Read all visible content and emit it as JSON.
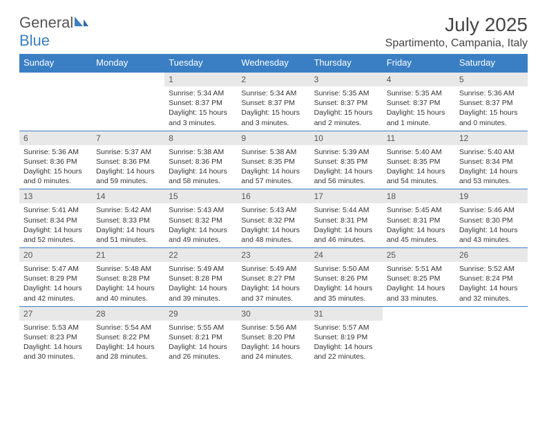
{
  "logo": {
    "text1": "General",
    "text2": "Blue"
  },
  "title": "July 2025",
  "location": "Spartimento, Campania, Italy",
  "colors": {
    "header_bg": "#3a7fc4",
    "header_fg": "#ffffff",
    "daynum_bg": "#e8e8e8",
    "text": "#333333",
    "rule": "#3a7fc4",
    "page_bg": "#ffffff",
    "logo_gray": "#555555",
    "logo_blue": "#3a7fc4"
  },
  "fonts": {
    "title_size": 28,
    "location_size": 16,
    "header_size": 13,
    "daynum_size": 12,
    "body_size": 10.5
  },
  "weekdays": [
    "Sunday",
    "Monday",
    "Tuesday",
    "Wednesday",
    "Thursday",
    "Friday",
    "Saturday"
  ],
  "first_weekday_index": 2,
  "days": [
    {
      "n": 1,
      "sunrise": "5:34 AM",
      "sunset": "8:37 PM",
      "daylight": "15 hours and 3 minutes."
    },
    {
      "n": 2,
      "sunrise": "5:34 AM",
      "sunset": "8:37 PM",
      "daylight": "15 hours and 3 minutes."
    },
    {
      "n": 3,
      "sunrise": "5:35 AM",
      "sunset": "8:37 PM",
      "daylight": "15 hours and 2 minutes."
    },
    {
      "n": 4,
      "sunrise": "5:35 AM",
      "sunset": "8:37 PM",
      "daylight": "15 hours and 1 minute."
    },
    {
      "n": 5,
      "sunrise": "5:36 AM",
      "sunset": "8:37 PM",
      "daylight": "15 hours and 0 minutes."
    },
    {
      "n": 6,
      "sunrise": "5:36 AM",
      "sunset": "8:36 PM",
      "daylight": "15 hours and 0 minutes."
    },
    {
      "n": 7,
      "sunrise": "5:37 AM",
      "sunset": "8:36 PM",
      "daylight": "14 hours and 59 minutes."
    },
    {
      "n": 8,
      "sunrise": "5:38 AM",
      "sunset": "8:36 PM",
      "daylight": "14 hours and 58 minutes."
    },
    {
      "n": 9,
      "sunrise": "5:38 AM",
      "sunset": "8:35 PM",
      "daylight": "14 hours and 57 minutes."
    },
    {
      "n": 10,
      "sunrise": "5:39 AM",
      "sunset": "8:35 PM",
      "daylight": "14 hours and 56 minutes."
    },
    {
      "n": 11,
      "sunrise": "5:40 AM",
      "sunset": "8:35 PM",
      "daylight": "14 hours and 54 minutes."
    },
    {
      "n": 12,
      "sunrise": "5:40 AM",
      "sunset": "8:34 PM",
      "daylight": "14 hours and 53 minutes."
    },
    {
      "n": 13,
      "sunrise": "5:41 AM",
      "sunset": "8:34 PM",
      "daylight": "14 hours and 52 minutes."
    },
    {
      "n": 14,
      "sunrise": "5:42 AM",
      "sunset": "8:33 PM",
      "daylight": "14 hours and 51 minutes."
    },
    {
      "n": 15,
      "sunrise": "5:43 AM",
      "sunset": "8:32 PM",
      "daylight": "14 hours and 49 minutes."
    },
    {
      "n": 16,
      "sunrise": "5:43 AM",
      "sunset": "8:32 PM",
      "daylight": "14 hours and 48 minutes."
    },
    {
      "n": 17,
      "sunrise": "5:44 AM",
      "sunset": "8:31 PM",
      "daylight": "14 hours and 46 minutes."
    },
    {
      "n": 18,
      "sunrise": "5:45 AM",
      "sunset": "8:31 PM",
      "daylight": "14 hours and 45 minutes."
    },
    {
      "n": 19,
      "sunrise": "5:46 AM",
      "sunset": "8:30 PM",
      "daylight": "14 hours and 43 minutes."
    },
    {
      "n": 20,
      "sunrise": "5:47 AM",
      "sunset": "8:29 PM",
      "daylight": "14 hours and 42 minutes."
    },
    {
      "n": 21,
      "sunrise": "5:48 AM",
      "sunset": "8:28 PM",
      "daylight": "14 hours and 40 minutes."
    },
    {
      "n": 22,
      "sunrise": "5:49 AM",
      "sunset": "8:28 PM",
      "daylight": "14 hours and 39 minutes."
    },
    {
      "n": 23,
      "sunrise": "5:49 AM",
      "sunset": "8:27 PM",
      "daylight": "14 hours and 37 minutes."
    },
    {
      "n": 24,
      "sunrise": "5:50 AM",
      "sunset": "8:26 PM",
      "daylight": "14 hours and 35 minutes."
    },
    {
      "n": 25,
      "sunrise": "5:51 AM",
      "sunset": "8:25 PM",
      "daylight": "14 hours and 33 minutes."
    },
    {
      "n": 26,
      "sunrise": "5:52 AM",
      "sunset": "8:24 PM",
      "daylight": "14 hours and 32 minutes."
    },
    {
      "n": 27,
      "sunrise": "5:53 AM",
      "sunset": "8:23 PM",
      "daylight": "14 hours and 30 minutes."
    },
    {
      "n": 28,
      "sunrise": "5:54 AM",
      "sunset": "8:22 PM",
      "daylight": "14 hours and 28 minutes."
    },
    {
      "n": 29,
      "sunrise": "5:55 AM",
      "sunset": "8:21 PM",
      "daylight": "14 hours and 26 minutes."
    },
    {
      "n": 30,
      "sunrise": "5:56 AM",
      "sunset": "8:20 PM",
      "daylight": "14 hours and 24 minutes."
    },
    {
      "n": 31,
      "sunrise": "5:57 AM",
      "sunset": "8:19 PM",
      "daylight": "14 hours and 22 minutes."
    }
  ],
  "labels": {
    "sunrise": "Sunrise:",
    "sunset": "Sunset:",
    "daylight": "Daylight:"
  }
}
